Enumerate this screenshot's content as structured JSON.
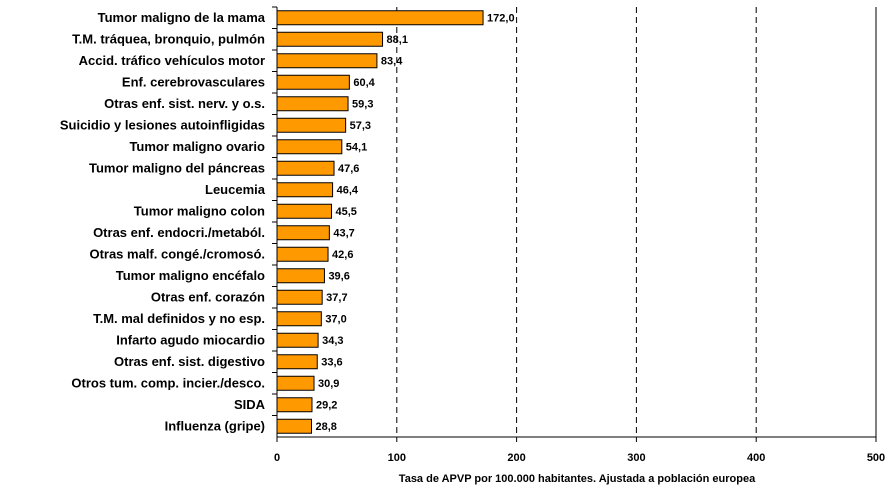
{
  "chart_data": {
    "type": "bar",
    "orientation": "horizontal",
    "x_label": "Tasa de APVP por 100.000 habitantes. Ajustada a población europea",
    "categories": [
      "Tumor maligno de la mama",
      "T.M. tráquea, bronquio,  pulmón",
      "Accid. tráfico vehículos motor",
      "Enf. cerebrovasculares",
      "Otras enf. sist. nerv. y o.s.",
      "Suicidio y lesiones autoinfligidas",
      "Tumor maligno ovario",
      "Tumor maligno del páncreas",
      "Leucemia",
      "Tumor maligno colon",
      "Otras enf. endocri./metaból.",
      "Otras malf. congé./cromosó.",
      "Tumor maligno encéfalo",
      "Otras enf. corazón",
      "T.M. mal definidos y no esp.",
      "Infarto agudo miocardio",
      "Otras enf. sist. digestivo",
      "Otros tum. comp. incier./desco.",
      "SIDA",
      "Influenza (gripe)"
    ],
    "values": [
      172.0,
      88.1,
      83.4,
      60.4,
      59.3,
      57.3,
      54.1,
      47.6,
      46.4,
      45.5,
      43.7,
      42.6,
      39.6,
      37.7,
      37.0,
      34.3,
      33.6,
      30.9,
      29.2,
      28.8
    ],
    "value_labels": [
      "172,0",
      "88,1",
      "83,4",
      "60,4",
      "59,3",
      "57,3",
      "54,1",
      "47,6",
      "46,4",
      "45,5",
      "43,7",
      "42,6",
      "39,6",
      "37,7",
      "37,0",
      "34,3",
      "33,6",
      "30,9",
      "29,2",
      "28,8"
    ],
    "color": "#ff9900",
    "xlim": [
      0,
      500
    ],
    "xticks": [
      0,
      100,
      200,
      300,
      400,
      500
    ],
    "grid": true
  }
}
